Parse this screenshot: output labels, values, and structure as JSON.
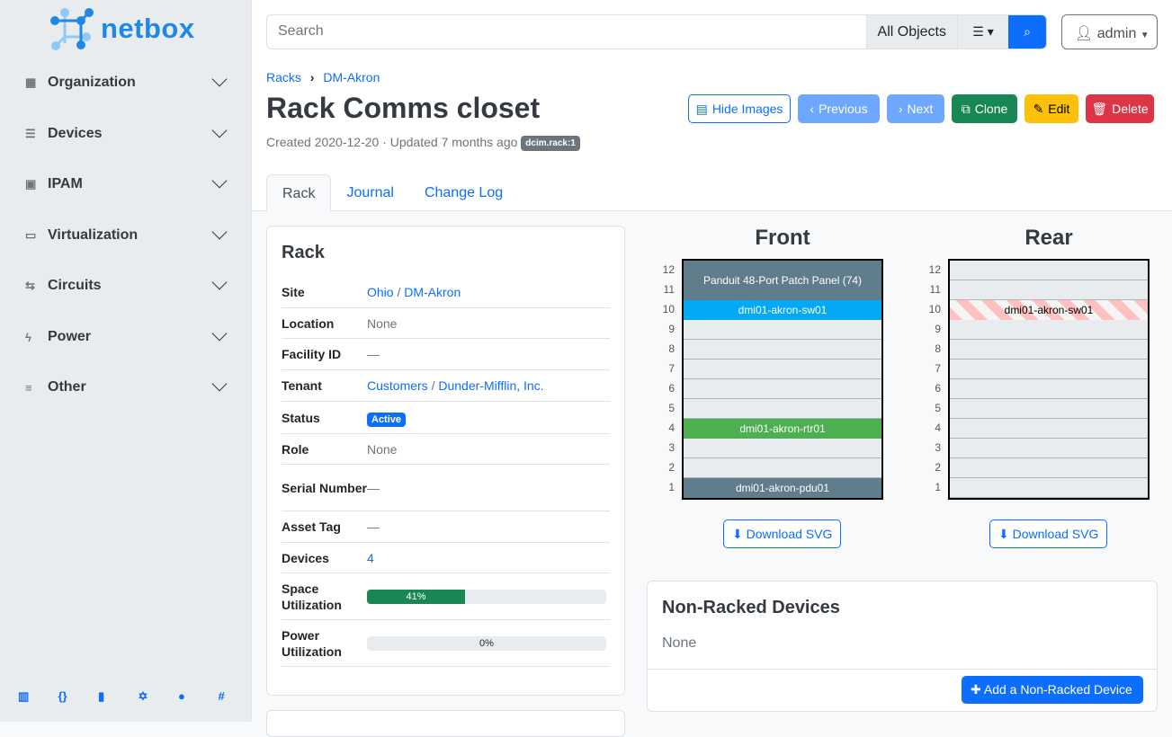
{
  "brand": {
    "name": "netbox"
  },
  "sidebar": {
    "items": [
      {
        "label": "Organization",
        "icon": "building-icon"
      },
      {
        "label": "Devices",
        "icon": "server-icon"
      },
      {
        "label": "IPAM",
        "icon": "ip-icon"
      },
      {
        "label": "Virtualization",
        "icon": "monitor-icon"
      },
      {
        "label": "Circuits",
        "icon": "circuit-icon"
      },
      {
        "label": "Power",
        "icon": "power-icon"
      },
      {
        "label": "Other",
        "icon": "other-icon"
      }
    ],
    "footer_icons": [
      "docs-icon",
      "api-icon",
      "book-icon",
      "graphql-icon",
      "github-icon",
      "slack-icon"
    ]
  },
  "search": {
    "placeholder": "Search",
    "scope": "All Objects"
  },
  "user": {
    "name": "admin"
  },
  "breadcrumb": [
    "Racks",
    "DM-Akron"
  ],
  "page": {
    "title": "Rack Comms closet",
    "meta": "Created 2020-12-20 · Updated 7 months ago",
    "badge": "dcim.rack:1"
  },
  "actions": {
    "hide_images": "Hide Images",
    "previous": "Previous",
    "next": "Next",
    "clone": "Clone",
    "edit": "Edit",
    "delete": "Delete"
  },
  "tabs": [
    "Rack",
    "Journal",
    "Change Log"
  ],
  "rack_card": {
    "title": "Rack",
    "rows": [
      {
        "k": "Site",
        "v": "Ohio",
        "v2": "DM-Akron"
      },
      {
        "k": "Location",
        "v": "None"
      },
      {
        "k": "Facility ID",
        "v": "—"
      },
      {
        "k": "Tenant",
        "v": "Customers",
        "v2": "Dunder-Mifflin, Inc."
      },
      {
        "k": "Status",
        "v": "Active"
      },
      {
        "k": "Role",
        "v": "None"
      },
      {
        "k": "Serial Number",
        "v": "—"
      },
      {
        "k": "Asset Tag",
        "v": "—"
      },
      {
        "k": "Devices",
        "v": "4"
      },
      {
        "k": "Space Utilization",
        "v": "41%",
        "percent": 41
      },
      {
        "k": "Power Utilization",
        "v": "0%",
        "percent": 0
      }
    ]
  },
  "elevation": {
    "front_title": "Front",
    "rear_title": "Rear",
    "units": [
      "12",
      "11",
      "10",
      "9",
      "8",
      "7",
      "6",
      "5",
      "4",
      "3",
      "2",
      "1"
    ],
    "front": [
      {
        "name": "Panduit 48-Port Patch Panel (74)",
        "top": 12,
        "height": 2,
        "color": "#607d8b"
      },
      {
        "name": "dmi01-akron-sw01",
        "top": 10,
        "height": 1,
        "color": "#03a9f4"
      },
      {
        "name": "dmi01-akron-rtr01",
        "top": 4,
        "height": 1,
        "color": "#4caf50"
      },
      {
        "name": "dmi01-akron-pdu01",
        "top": 1,
        "height": 1,
        "color": "#607d8b"
      }
    ],
    "rear": [
      {
        "name": "dmi01-akron-sw01",
        "top": 10,
        "height": 1
      }
    ],
    "download": "Download SVG"
  },
  "non_racked": {
    "title": "Non-Racked Devices",
    "value": "None",
    "add": "Add a Non-Racked Device"
  }
}
